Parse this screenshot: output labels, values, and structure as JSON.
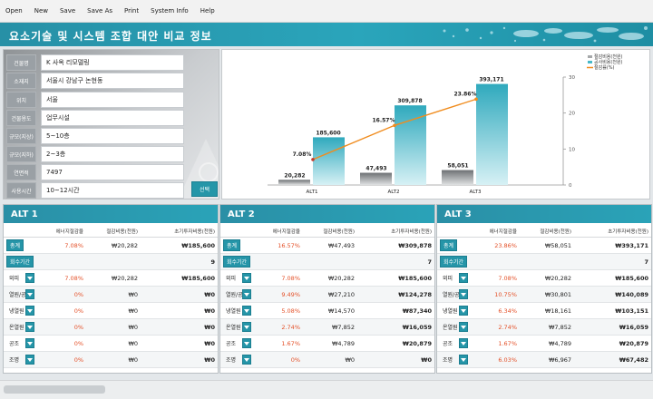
{
  "menu": [
    "Open",
    "New",
    "Save",
    "Save As",
    "Print",
    "System Info",
    "Help"
  ],
  "title": "요소기술 및 시스템 조합 대안 비교 정보",
  "info": {
    "rows": [
      {
        "label": "건물명",
        "value": "K 사옥 리모델링"
      },
      {
        "label": "소재지",
        "value": "서울시 강남구 논현동"
      },
      {
        "label": "위치",
        "value": "서울"
      },
      {
        "label": "건물용도",
        "value": "업무시설"
      },
      {
        "label": "규모(지상)",
        "value": "5~10층"
      },
      {
        "label": "규모(지하)",
        "value": "2~3층"
      },
      {
        "label": "연면적",
        "value": "7497"
      },
      {
        "label": "사용시간",
        "value": "10~12시간"
      }
    ],
    "select_label": "선택"
  },
  "chart_data": {
    "type": "bar",
    "categories": [
      "ALT1",
      "ALT2",
      "ALT3"
    ],
    "series": [
      {
        "name": "절감비용(천원)",
        "type": "bar",
        "values": [
          20282,
          47493,
          58051
        ],
        "labels": [
          "20,282",
          "47,493",
          "58,051"
        ],
        "color": "#a6a8aa"
      },
      {
        "name": "공사비용(천원)",
        "type": "bar",
        "values": [
          185600,
          309878,
          393171
        ],
        "labels": [
          "185,600",
          "309,878",
          "393,171"
        ],
        "color": "#47b9c9"
      },
      {
        "name": "절감률(%)",
        "type": "line",
        "axis": "right",
        "values": [
          7.08,
          16.57,
          23.86
        ],
        "labels": [
          "7.08%",
          "16.57%",
          "23.86%"
        ],
        "color": "#f08c1e"
      }
    ],
    "ylim_right": [
      0,
      30
    ],
    "right_ticks": [
      "0",
      "10",
      "20",
      "30"
    ],
    "grid": false,
    "legend": "top-right"
  },
  "col_headers": [
    "에너지절감율",
    "절감비용(천원)",
    "초기투자비용(천원)"
  ],
  "alts": [
    {
      "name": "ALT 1",
      "rows": [
        {
          "label": "총계",
          "chip": true,
          "dd": false,
          "pct": "7.08%",
          "save": "₩20,282",
          "invest": "₩185,600"
        },
        {
          "label": "회수기간",
          "chip": true,
          "dd": false,
          "pct": "",
          "save": "",
          "invest": "9"
        },
        {
          "label": "외피",
          "chip": false,
          "dd": true,
          "pct": "7.08%",
          "save": "₩20,282",
          "invest": "₩185,600"
        },
        {
          "label": "열원/공조",
          "chip": false,
          "dd": true,
          "pct": "0%",
          "save": "₩0",
          "invest": "₩0"
        },
        {
          "label": "냉열원",
          "chip": false,
          "dd": true,
          "pct": "0%",
          "save": "₩0",
          "invest": "₩0"
        },
        {
          "label": "온열원",
          "chip": false,
          "dd": true,
          "pct": "0%",
          "save": "₩0",
          "invest": "₩0"
        },
        {
          "label": "공조",
          "chip": false,
          "dd": true,
          "pct": "0%",
          "save": "₩0",
          "invest": "₩0"
        },
        {
          "label": "조명",
          "chip": false,
          "dd": true,
          "pct": "0%",
          "save": "₩0",
          "invest": "₩0"
        }
      ]
    },
    {
      "name": "ALT 2",
      "rows": [
        {
          "label": "총계",
          "chip": true,
          "dd": false,
          "pct": "16.57%",
          "save": "₩47,493",
          "invest": "₩309,878"
        },
        {
          "label": "회수기간",
          "chip": true,
          "dd": false,
          "pct": "",
          "save": "",
          "invest": "7"
        },
        {
          "label": "외피",
          "chip": false,
          "dd": true,
          "pct": "7.08%",
          "save": "₩20,282",
          "invest": "₩185,600"
        },
        {
          "label": "열원/공조",
          "chip": false,
          "dd": true,
          "pct": "9.49%",
          "save": "₩27,210",
          "invest": "₩124,278"
        },
        {
          "label": "냉열원",
          "chip": false,
          "dd": true,
          "pct": "5.08%",
          "save": "₩14,570",
          "invest": "₩87,340"
        },
        {
          "label": "온열원",
          "chip": false,
          "dd": true,
          "pct": "2.74%",
          "save": "₩7,852",
          "invest": "₩16,059"
        },
        {
          "label": "공조",
          "chip": false,
          "dd": true,
          "pct": "1.67%",
          "save": "₩4,789",
          "invest": "₩20,879"
        },
        {
          "label": "조명",
          "chip": false,
          "dd": true,
          "pct": "0%",
          "save": "₩0",
          "invest": "₩0"
        }
      ]
    },
    {
      "name": "ALT 3",
      "rows": [
        {
          "label": "총계",
          "chip": true,
          "dd": false,
          "pct": "23.86%",
          "save": "₩58,051",
          "invest": "₩393,171"
        },
        {
          "label": "회수기간",
          "chip": true,
          "dd": false,
          "pct": "",
          "save": "",
          "invest": "7"
        },
        {
          "label": "외피",
          "chip": false,
          "dd": true,
          "pct": "7.08%",
          "save": "₩20,282",
          "invest": "₩185,600"
        },
        {
          "label": "열원/공조",
          "chip": false,
          "dd": true,
          "pct": "10.75%",
          "save": "₩30,801",
          "invest": "₩140,089"
        },
        {
          "label": "냉열원",
          "chip": false,
          "dd": true,
          "pct": "6.34%",
          "save": "₩18,161",
          "invest": "₩103,151"
        },
        {
          "label": "온열원",
          "chip": false,
          "dd": true,
          "pct": "2.74%",
          "save": "₩7,852",
          "invest": "₩16,059"
        },
        {
          "label": "공조",
          "chip": false,
          "dd": true,
          "pct": "1.67%",
          "save": "₩4,789",
          "invest": "₩20,879"
        },
        {
          "label": "조명",
          "chip": false,
          "dd": true,
          "pct": "6.03%",
          "save": "₩6,967",
          "invest": "₩67,482"
        }
      ]
    }
  ]
}
